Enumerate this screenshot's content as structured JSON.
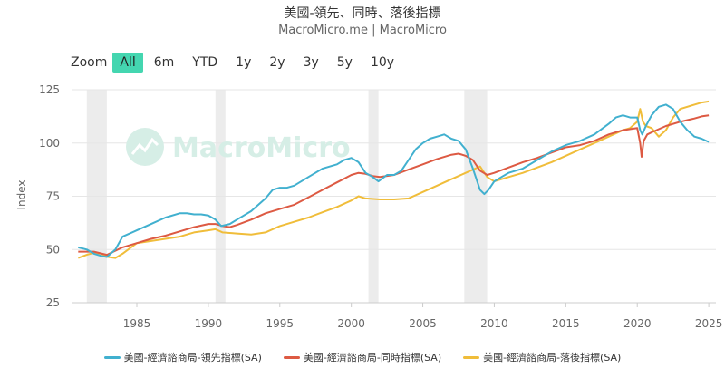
{
  "header": {
    "title": "美國-領先、同時、落後指標",
    "subtitle": "MacroMicro.me | MacroMicro"
  },
  "zoom": {
    "label": "Zoom",
    "options": [
      "All",
      "6m",
      "YTD",
      "1y",
      "2y",
      "3y",
      "5y",
      "10y"
    ],
    "active": "All"
  },
  "watermark": "MacroMicro",
  "chart_data": {
    "type": "line",
    "title": "美國-領先、同時、落後指標",
    "xlabel": "",
    "ylabel": "Index",
    "xlim": [
      1980.5,
      2025.5
    ],
    "ylim": [
      25,
      125
    ],
    "yticks": [
      25,
      50,
      75,
      100,
      125
    ],
    "xticks": [
      1985,
      1990,
      1995,
      2000,
      2005,
      2010,
      2015,
      2020,
      2025
    ],
    "grid": "horizontal",
    "legend_position": "bottom",
    "recessions": [
      [
        1981.5,
        1982.9
      ],
      [
        1990.5,
        1991.2
      ],
      [
        2001.2,
        2001.9
      ],
      [
        2007.9,
        2009.5
      ]
    ],
    "series": [
      {
        "name": "美國-經濟諮商局-領先指標(SA)",
        "color": "#41b0cf",
        "x": [
          1980.9,
          1981.5,
          1982.0,
          1982.5,
          1982.9,
          1983.5,
          1984.0,
          1985.0,
          1986.0,
          1987.0,
          1988.0,
          1988.5,
          1989.0,
          1989.5,
          1990.0,
          1990.5,
          1990.9,
          1991.5,
          1992.0,
          1993.0,
          1994.0,
          1994.5,
          1995.0,
          1995.5,
          1996.0,
          1997.0,
          1998.0,
          1999.0,
          1999.5,
          2000.0,
          2000.5,
          2001.0,
          2001.5,
          2001.9,
          2002.5,
          2003.0,
          2003.5,
          2004.0,
          2004.5,
          2005.0,
          2005.5,
          2006.0,
          2006.5,
          2007.0,
          2007.5,
          2008.0,
          2008.5,
          2009.0,
          2009.3,
          2009.6,
          2010.0,
          2010.5,
          2011.0,
          2012.0,
          2013.0,
          2014.0,
          2015.0,
          2016.0,
          2017.0,
          2018.0,
          2018.5,
          2019.0,
          2019.5,
          2020.0,
          2020.2,
          2020.35,
          2020.6,
          2021.0,
          2021.5,
          2022.0,
          2022.5,
          2023.0,
          2023.5,
          2024.0,
          2024.5,
          2025.0
        ],
        "values": [
          51,
          50,
          48,
          47,
          46.5,
          50,
          56,
          59,
          62,
          65,
          67,
          67,
          66.5,
          66.5,
          66,
          64,
          61,
          62,
          64,
          68,
          74,
          78,
          79,
          79,
          80,
          84,
          88,
          90,
          92,
          93,
          91,
          86,
          84,
          82,
          85,
          85,
          87,
          92,
          97,
          100,
          102,
          103,
          104,
          102,
          101,
          97,
          88,
          78,
          76,
          78,
          82,
          84,
          86,
          88,
          92,
          96,
          99,
          101,
          104,
          109,
          112,
          113,
          112,
          112,
          106,
          104,
          108,
          113,
          117,
          118,
          116,
          110,
          106,
          103,
          102,
          100.5
        ]
      },
      {
        "name": "美國-經濟諮商局-同時指標(SA)",
        "color": "#dd5a43",
        "x": [
          1980.9,
          1981.5,
          1982.0,
          1982.9,
          1984.0,
          1985.0,
          1986.0,
          1987.0,
          1988.0,
          1989.0,
          1990.0,
          1990.5,
          1991.0,
          1991.5,
          1992.0,
          1993.0,
          1994.0,
          1995.0,
          1996.0,
          1997.0,
          1998.0,
          1999.0,
          2000.0,
          2000.5,
          2001.0,
          2001.5,
          2002.0,
          2003.0,
          2004.0,
          2005.0,
          2006.0,
          2007.0,
          2007.5,
          2008.0,
          2008.5,
          2009.0,
          2009.5,
          2010.0,
          2011.0,
          2012.0,
          2013.0,
          2014.0,
          2015.0,
          2016.0,
          2017.0,
          2018.0,
          2019.0,
          2020.0,
          2020.2,
          2020.3,
          2020.45,
          2020.7,
          2021.0,
          2022.0,
          2023.0,
          2024.0,
          2024.5,
          2025.0
        ],
        "values": [
          49,
          49,
          49,
          47.5,
          51,
          53,
          55,
          56.5,
          58.5,
          60.5,
          62,
          62,
          61,
          60.5,
          61.5,
          64,
          67,
          69,
          71,
          74.5,
          78,
          81.5,
          85,
          86,
          85.5,
          84.5,
          84,
          85,
          87.5,
          90,
          92.5,
          94.5,
          95,
          94,
          92,
          87,
          85,
          86,
          88.5,
          91,
          93,
          95.5,
          98,
          99,
          101,
          104,
          106,
          107,
          100,
          93.5,
          101,
          104,
          105,
          108,
          110,
          111.5,
          112.5,
          113
        ]
      },
      {
        "name": "美國-經濟諮商局-落後指標(SA)",
        "color": "#f0bd3a",
        "x": [
          1980.9,
          1981.5,
          1982.0,
          1982.5,
          1983.0,
          1983.5,
          1984.0,
          1985.0,
          1986.0,
          1987.0,
          1988.0,
          1989.0,
          1990.0,
          1990.5,
          1991.0,
          1992.0,
          1993.0,
          1994.0,
          1995.0,
          1996.0,
          1997.0,
          1998.0,
          1999.0,
          2000.0,
          2000.5,
          2001.0,
          2002.0,
          2003.0,
          2004.0,
          2005.0,
          2006.0,
          2007.0,
          2008.0,
          2009.0,
          2009.5,
          2010.0,
          2011.0,
          2012.0,
          2013.0,
          2014.0,
          2015.0,
          2016.0,
          2017.0,
          2018.0,
          2019.0,
          2019.5,
          2020.0,
          2020.2,
          2020.4,
          2020.6,
          2021.0,
          2021.5,
          2022.0,
          2022.5,
          2023.0,
          2024.0,
          2024.5,
          2025.0
        ],
        "values": [
          46,
          47.5,
          48.5,
          48,
          46.5,
          46,
          48,
          53,
          54,
          55,
          56,
          58,
          59,
          59.5,
          58,
          57.5,
          57,
          58,
          61,
          63,
          65,
          67.5,
          70,
          73,
          75,
          74,
          73.5,
          73.5,
          74,
          77,
          80,
          83,
          86,
          89,
          84,
          82,
          84,
          86,
          88.5,
          91,
          94,
          97,
          100,
          103,
          106,
          107,
          110,
          116,
          110,
          108,
          107,
          103,
          106,
          112,
          116,
          118,
          119,
          119.5
        ]
      }
    ]
  },
  "legend": [
    {
      "label": "美國-經濟諮商局-領先指標(SA)",
      "color": "#41b0cf"
    },
    {
      "label": "美國-經濟諮商局-同時指標(SA)",
      "color": "#dd5a43"
    },
    {
      "label": "美國-經濟諮商局-落後指標(SA)",
      "color": "#f0bd3a"
    }
  ]
}
